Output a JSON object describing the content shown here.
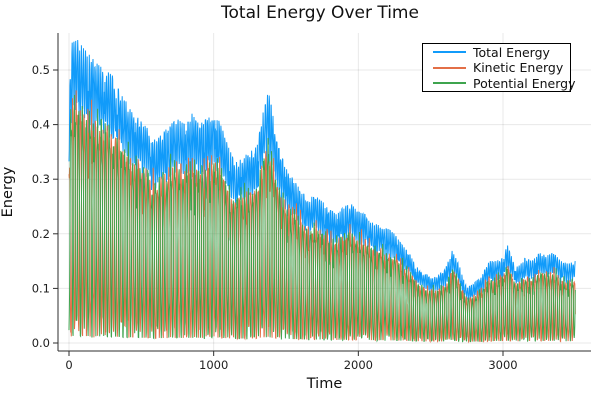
{
  "title": "Total Energy Over Time",
  "chart_data": {
    "type": "line",
    "title": "Total Energy Over Time",
    "xlabel": "Time",
    "ylabel": "Energy",
    "xlim": [
      -80,
      3610
    ],
    "ylim": [
      -0.015,
      0.568
    ],
    "xticks": {
      "values": [
        0,
        1000,
        2000,
        3000
      ],
      "labels": [
        "0",
        "1000",
        "2000",
        "3000"
      ]
    },
    "yticks": {
      "values": [
        0.0,
        0.1,
        0.2,
        0.3,
        0.4,
        0.5
      ],
      "labels": [
        "0.0",
        "0.1",
        "0.2",
        "0.3",
        "0.4",
        "0.5"
      ]
    },
    "grid": true,
    "legend": {
      "position": "top-right",
      "border_color": "#000000",
      "background": "#ffffff"
    },
    "series": [
      {
        "name": "Total Energy",
        "color": "#119bfa"
      },
      {
        "name": "Kinetic Energy",
        "color": "#e36f47"
      },
      {
        "name": "Potential Energy",
        "color": "#3ea44e"
      }
    ],
    "description": "Three rapidly oscillating energy traces of a damped oscillator; Total = Kinetic + Potential. Kinetic and Potential oscillate out of phase between ~0 and the total-energy envelope; the envelope decays from ~0.55 at t=0 to ~0.15 by t=3500 with a spike near t=1380 (~0.47) and a trough near t=2750 (~0.10).",
    "total_energy_upper_envelope": {
      "t": [
        0,
        20,
        60,
        100,
        150,
        200,
        250,
        300,
        350,
        400,
        450,
        500,
        550,
        600,
        650,
        700,
        750,
        800,
        850,
        900,
        950,
        1000,
        1050,
        1100,
        1150,
        1200,
        1250,
        1300,
        1340,
        1380,
        1420,
        1460,
        1500,
        1550,
        1600,
        1650,
        1700,
        1750,
        1800,
        1850,
        1900,
        1950,
        2000,
        2050,
        2100,
        2150,
        2200,
        2250,
        2300,
        2350,
        2400,
        2450,
        2500,
        2550,
        2600,
        2650,
        2700,
        2750,
        2800,
        2850,
        2900,
        2950,
        3000,
        3030,
        3070,
        3100,
        3150,
        3200,
        3250,
        3300,
        3350,
        3400,
        3450,
        3500
      ],
      "value": [
        0.44,
        0.55,
        0.555,
        0.54,
        0.525,
        0.51,
        0.5,
        0.49,
        0.46,
        0.44,
        0.42,
        0.41,
        0.39,
        0.37,
        0.385,
        0.4,
        0.41,
        0.4,
        0.42,
        0.4,
        0.41,
        0.425,
        0.4,
        0.36,
        0.33,
        0.34,
        0.35,
        0.36,
        0.42,
        0.465,
        0.4,
        0.35,
        0.32,
        0.3,
        0.28,
        0.265,
        0.27,
        0.26,
        0.245,
        0.235,
        0.25,
        0.255,
        0.24,
        0.235,
        0.22,
        0.215,
        0.21,
        0.2,
        0.18,
        0.165,
        0.14,
        0.13,
        0.12,
        0.125,
        0.135,
        0.17,
        0.14,
        0.1,
        0.11,
        0.12,
        0.15,
        0.15,
        0.155,
        0.18,
        0.15,
        0.14,
        0.155,
        0.15,
        0.165,
        0.16,
        0.165,
        0.15,
        0.145,
        0.15
      ]
    },
    "oscillation": {
      "period_time_units": 27,
      "sample_step": 2,
      "t_end": 3500,
      "seed": 20240601,
      "total_band_low_fraction": 0.78,
      "kinetic_fraction_range": [
        0.03,
        0.97
      ]
    }
  },
  "colors": {
    "grid": "rgba(0,0,0,0.09)",
    "spine": "#2e2e2e",
    "tick_text": "#202020",
    "background": "#ffffff"
  }
}
